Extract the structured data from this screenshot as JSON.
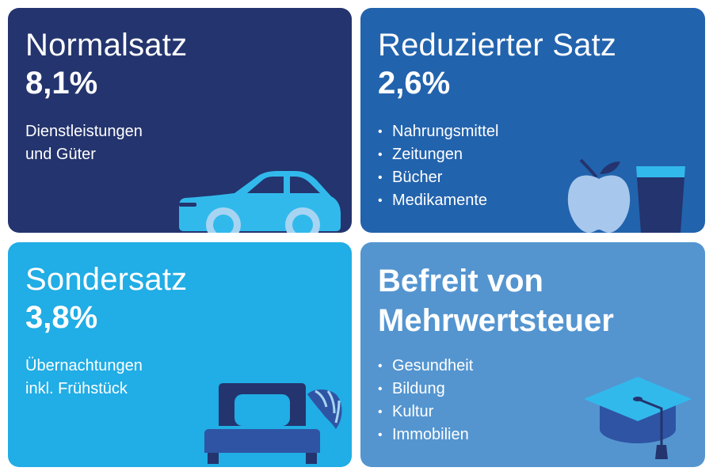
{
  "colors": {
    "normal_bg": "#24346e",
    "reduced_bg": "#2263ad",
    "special_bg": "#21ade5",
    "exempt_bg": "#5495d0"
  },
  "cards": {
    "normal": {
      "title": "Normalsatz",
      "rate": "8,1%",
      "desc_lines": [
        "Dienstleistungen",
        "und Güter"
      ],
      "icon": "car-icon"
    },
    "reduced": {
      "title": "Reduzierter Satz",
      "rate": "2,6%",
      "items": [
        "Nahrungsmittel",
        "Zeitungen",
        "Bücher",
        "Medikamente"
      ],
      "icons": [
        "apple-icon",
        "glass-icon"
      ]
    },
    "special": {
      "title": "Sondersatz",
      "rate": "3,8%",
      "desc_lines": [
        "Übernachtungen",
        "inkl. Frühstück"
      ],
      "icons": [
        "bed-icon",
        "croissant-icon"
      ]
    },
    "exempt": {
      "title_bold": "Befreit",
      "title_rest": " von",
      "title_line2": "Mehrwertsteuer",
      "items": [
        "Gesundheit",
        "Bildung",
        "Kultur",
        "Immobilien"
      ],
      "icon": "graduation-cap-icon"
    }
  }
}
